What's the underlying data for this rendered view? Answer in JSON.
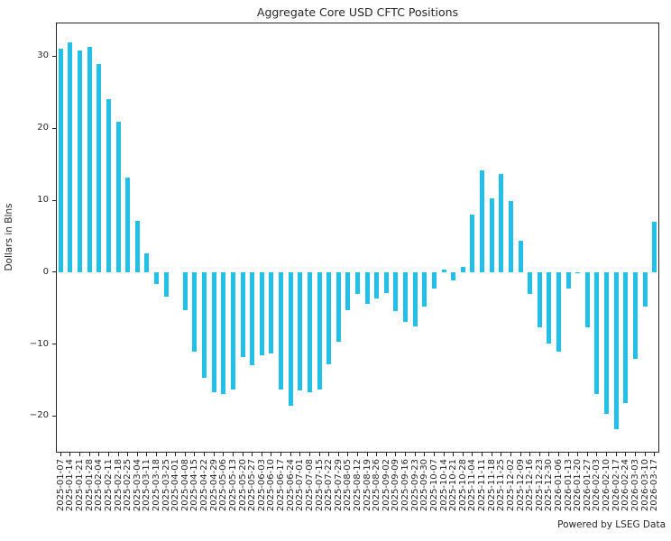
{
  "credit": "Powered by LSEG Data",
  "chart_data": {
    "type": "bar",
    "title": "Aggregate Core USD CFTC Positions",
    "xlabel": "",
    "ylabel": "Dollars in Blns",
    "ylim": [
      -25.1,
      34.7
    ],
    "yticks": [
      30,
      20,
      10,
      0,
      -10,
      -20
    ],
    "grid": false,
    "legend": "none",
    "xtick_rotation": 90,
    "bar_color": "#22C0E8",
    "text_color": "#262626",
    "categories": [
      "2025-01-07",
      "2025-01-14",
      "2025-01-21",
      "2025-01-28",
      "2025-02-04",
      "2025-02-11",
      "2025-02-18",
      "2025-02-25",
      "2025-03-04",
      "2025-03-11",
      "2025-03-18",
      "2025-03-25",
      "2025-04-01",
      "2025-04-08",
      "2025-04-15",
      "2025-04-22",
      "2025-04-29",
      "2025-05-06",
      "2025-05-13",
      "2025-05-20",
      "2025-05-27",
      "2025-06-03",
      "2025-06-10",
      "2025-06-17",
      "2025-06-24",
      "2025-07-01",
      "2025-07-08",
      "2025-07-15",
      "2025-07-22",
      "2025-07-29",
      "2025-08-05",
      "2025-08-12",
      "2025-08-19",
      "2025-08-26",
      "2025-09-02",
      "2025-09-09",
      "2025-09-16",
      "2025-09-23",
      "2025-09-30",
      "2025-10-07",
      "2025-10-14",
      "2025-10-21",
      "2025-10-28",
      "2025-11-04",
      "2025-11-11",
      "2025-11-18",
      "2025-11-25",
      "2025-12-02",
      "2025-12-09",
      "2025-12-16",
      "2025-12-23",
      "2025-12-30",
      "2026-01-06",
      "2026-01-13",
      "2026-01-20",
      "2026-01-27",
      "2026-02-03",
      "2026-02-10",
      "2026-02-17",
      "2026-02-24",
      "2026-03-03",
      "2026-03-10",
      "2026-03-17"
    ],
    "values": [
      31.1,
      32.0,
      30.8,
      31.3,
      28.9,
      24.1,
      20.9,
      13.1,
      7.1,
      2.6,
      -1.7,
      -3.4,
      0.0,
      -5.3,
      -11.1,
      -14.7,
      -16.7,
      -17.0,
      -16.3,
      -11.8,
      -13.0,
      -11.6,
      -11.3,
      -16.3,
      -18.6,
      -16.5,
      -16.7,
      -16.3,
      -12.8,
      -9.7,
      -5.3,
      -3.0,
      -4.4,
      -3.7,
      -2.9,
      -5.4,
      -6.9,
      -7.5,
      -4.8,
      -2.3,
      0.4,
      -1.2,
      0.7,
      8.0,
      14.2,
      10.3,
      13.7,
      9.9,
      4.4,
      -3.0,
      -7.7,
      -9.9,
      -11.1,
      -2.3,
      -0.2,
      -7.7,
      -16.9,
      -19.7,
      -21.8,
      -18.2,
      -12.1,
      -4.8,
      7.0
    ]
  }
}
